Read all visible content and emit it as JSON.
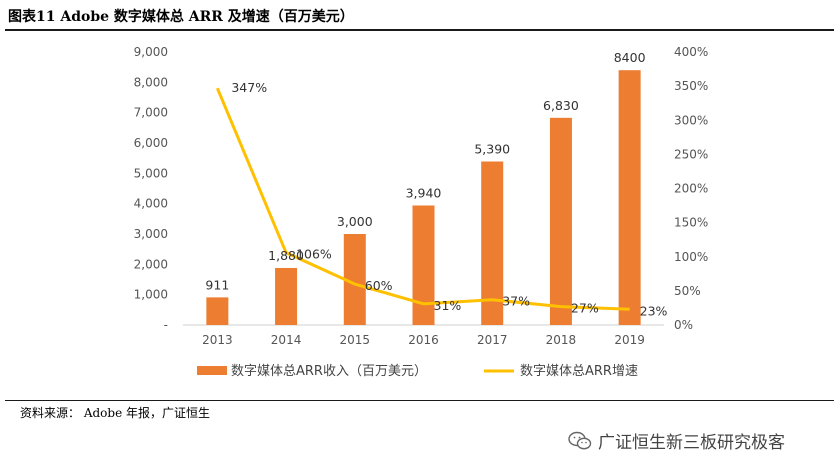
{
  "header": {
    "title": "图表11  Adobe 数字媒体总 ARR 及增速（百万美元）"
  },
  "footer": {
    "source": "资料来源：  Adobe 年报，广证恒生"
  },
  "watermark": {
    "text": "广证恒生新三板研究极客",
    "icon": "wechat-icon"
  },
  "colors": {
    "bar": "#ED7D31",
    "line": "#FFC000"
  },
  "chart_data": {
    "type": "bar+line",
    "categories": [
      "2013",
      "2014",
      "2015",
      "2016",
      "2017",
      "2018",
      "2019"
    ],
    "series": [
      {
        "name": "数字媒体总ARR收入（百万美元）",
        "type": "bar",
        "axis": "left",
        "values": [
          911,
          1880,
          3000,
          3940,
          5390,
          6830,
          8400
        ],
        "labels": [
          "911",
          "1,880",
          "3,000",
          "3,940",
          "5,390",
          "6,830",
          "8400"
        ]
      },
      {
        "name": "数字媒体总ARR增速",
        "type": "line",
        "axis": "right",
        "values": [
          347,
          106,
          60,
          31,
          37,
          27,
          23
        ],
        "labels": [
          "347%",
          "106%",
          "60%",
          "31%",
          "37%",
          "27%",
          "23%"
        ]
      }
    ],
    "left_axis": {
      "ylim": [
        0,
        9000
      ],
      "ticks": [
        "-",
        "1,000",
        "2,000",
        "3,000",
        "4,000",
        "5,000",
        "6,000",
        "7,000",
        "8,000",
        "9,000"
      ]
    },
    "right_axis": {
      "ylim": [
        0,
        400
      ],
      "ticks": [
        "0%",
        "50%",
        "100%",
        "150%",
        "200%",
        "250%",
        "300%",
        "350%",
        "400%"
      ]
    },
    "legend_position": "bottom"
  }
}
